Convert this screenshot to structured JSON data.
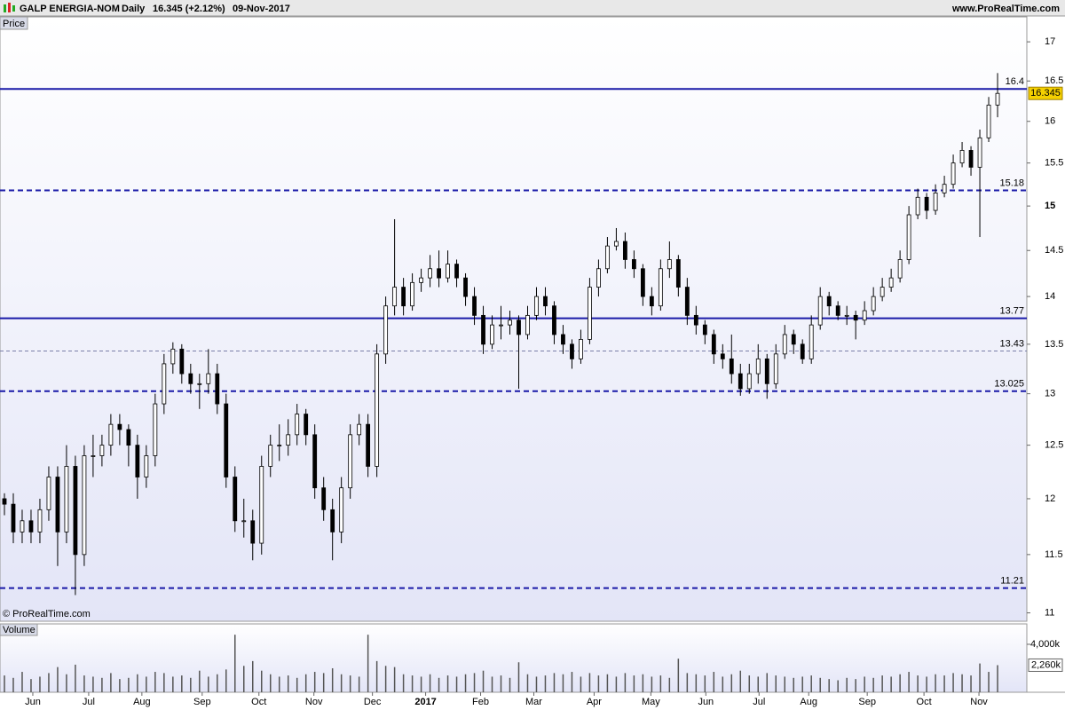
{
  "chart_data": {
    "type": "candlestick",
    "symbol": "GALP ENERGIA-NOM",
    "period": "Daily",
    "quote": "16.345 (+2.12%)",
    "date": "09-Nov-2017",
    "site": "www.ProRealTime.com",
    "copyright": "© ProRealTime.com",
    "price_label": "Price",
    "volume_label": "Volume",
    "log_scale": true,
    "ylim": [
      10.93,
      17.14
    ],
    "yticks": [
      11,
      11.5,
      12,
      12.5,
      13,
      13.5,
      14,
      14.5,
      15,
      15.5,
      16,
      16.5,
      17
    ],
    "bold_ytick": 15,
    "xlim": [
      -0.5,
      115.3
    ],
    "xticks": [
      {
        "value": 3.2,
        "label": "Jun"
      },
      {
        "value": 9.5,
        "label": "Jul"
      },
      {
        "value": 15.5,
        "label": "Aug"
      },
      {
        "value": 22.3,
        "label": "Sep"
      },
      {
        "value": 28.7,
        "label": "Oct"
      },
      {
        "value": 34.9,
        "label": "Nov"
      },
      {
        "value": 41.5,
        "label": "Dec"
      },
      {
        "value": 47.5,
        "label": "2017"
      },
      {
        "value": 53.7,
        "label": "Feb"
      },
      {
        "value": 59.7,
        "label": "Mar"
      },
      {
        "value": 66.5,
        "label": "Apr"
      },
      {
        "value": 72.9,
        "label": "May"
      },
      {
        "value": 79.1,
        "label": "Jun"
      },
      {
        "value": 85.1,
        "label": "Jul"
      },
      {
        "value": 90.7,
        "label": "Aug"
      },
      {
        "value": 97.3,
        "label": "Sep"
      },
      {
        "value": 103.7,
        "label": "Oct"
      },
      {
        "value": 109.9,
        "label": "Nov"
      }
    ],
    "bold_xtick": "2017",
    "levels": [
      {
        "value": 16.4,
        "style": "solid"
      },
      {
        "value": 15.18,
        "style": "dashed"
      },
      {
        "value": 13.77,
        "style": "solid"
      },
      {
        "value": 13.43,
        "style": "thin"
      },
      {
        "value": 13.025,
        "style": "dashed"
      },
      {
        "value": 11.21,
        "style": "dashed"
      }
    ],
    "level_color": "#1a1aa8",
    "last_price": 16.345,
    "ohlc": [
      [
        12.0,
        12.05,
        11.85,
        11.95
      ],
      [
        11.95,
        12.05,
        11.6,
        11.7
      ],
      [
        11.7,
        11.9,
        11.6,
        11.8
      ],
      [
        11.8,
        11.9,
        11.6,
        11.7
      ],
      [
        11.7,
        12.0,
        11.6,
        11.9
      ],
      [
        11.9,
        12.3,
        11.8,
        12.2
      ],
      [
        12.2,
        12.3,
        11.4,
        11.7
      ],
      [
        11.7,
        12.5,
        11.6,
        12.3
      ],
      [
        12.3,
        12.4,
        11.15,
        11.5
      ],
      [
        11.5,
        12.5,
        11.4,
        12.4
      ],
      [
        12.4,
        12.6,
        12.2,
        12.4
      ],
      [
        12.4,
        12.6,
        12.3,
        12.5
      ],
      [
        12.5,
        12.8,
        12.4,
        12.7
      ],
      [
        12.7,
        12.8,
        12.5,
        12.65
      ],
      [
        12.65,
        12.7,
        12.3,
        12.5
      ],
      [
        12.5,
        12.6,
        12.0,
        12.2
      ],
      [
        12.2,
        12.5,
        12.1,
        12.4
      ],
      [
        12.4,
        13.0,
        12.3,
        12.9
      ],
      [
        12.9,
        13.4,
        12.8,
        13.3
      ],
      [
        13.3,
        13.52,
        13.2,
        13.45
      ],
      [
        13.45,
        13.5,
        13.1,
        13.2
      ],
      [
        13.2,
        13.3,
        13.0,
        13.1
      ],
      [
        13.1,
        13.2,
        12.85,
        13.1
      ],
      [
        13.1,
        13.45,
        13.0,
        13.2
      ],
      [
        13.2,
        13.3,
        12.8,
        12.9
      ],
      [
        12.9,
        13.0,
        12.1,
        12.2
      ],
      [
        12.2,
        12.3,
        11.7,
        11.8
      ],
      [
        11.8,
        12.0,
        11.65,
        11.8
      ],
      [
        11.8,
        11.9,
        11.45,
        11.6
      ],
      [
        11.6,
        12.4,
        11.5,
        12.3
      ],
      [
        12.3,
        12.6,
        12.2,
        12.5
      ],
      [
        12.5,
        12.7,
        12.35,
        12.5
      ],
      [
        12.5,
        12.75,
        12.4,
        12.6
      ],
      [
        12.6,
        12.9,
        12.5,
        12.8
      ],
      [
        12.8,
        12.85,
        12.5,
        12.6
      ],
      [
        12.6,
        12.7,
        12.0,
        12.1
      ],
      [
        12.1,
        12.2,
        11.8,
        11.9
      ],
      [
        11.9,
        12.0,
        11.45,
        11.7
      ],
      [
        11.7,
        12.2,
        11.6,
        12.1
      ],
      [
        12.1,
        12.7,
        12.0,
        12.6
      ],
      [
        12.6,
        12.8,
        12.5,
        12.7
      ],
      [
        12.7,
        12.8,
        12.2,
        12.3
      ],
      [
        12.3,
        13.5,
        12.2,
        13.4
      ],
      [
        13.4,
        14.0,
        13.3,
        13.9
      ],
      [
        13.9,
        14.85,
        13.8,
        14.1
      ],
      [
        14.1,
        14.2,
        13.8,
        13.9
      ],
      [
        13.9,
        14.25,
        13.85,
        14.15
      ],
      [
        14.15,
        14.3,
        14.05,
        14.2
      ],
      [
        14.2,
        14.45,
        14.1,
        14.3
      ],
      [
        14.3,
        14.5,
        14.1,
        14.2
      ],
      [
        14.2,
        14.5,
        14.15,
        14.35
      ],
      [
        14.35,
        14.4,
        14.1,
        14.2
      ],
      [
        14.2,
        14.25,
        13.9,
        14.0
      ],
      [
        14.0,
        14.1,
        13.7,
        13.8
      ],
      [
        13.8,
        13.9,
        13.4,
        13.5
      ],
      [
        13.5,
        13.8,
        13.45,
        13.7
      ],
      [
        13.7,
        13.9,
        13.55,
        13.7
      ],
      [
        13.7,
        13.85,
        13.6,
        13.75
      ],
      [
        13.75,
        13.8,
        13.05,
        13.6
      ],
      [
        13.6,
        13.9,
        13.55,
        13.8
      ],
      [
        13.8,
        14.1,
        13.75,
        14.0
      ],
      [
        14.0,
        14.1,
        13.8,
        13.9
      ],
      [
        13.9,
        13.95,
        13.5,
        13.6
      ],
      [
        13.6,
        13.7,
        13.4,
        13.5
      ],
      [
        13.5,
        13.55,
        13.25,
        13.35
      ],
      [
        13.35,
        13.65,
        13.3,
        13.55
      ],
      [
        13.55,
        14.2,
        13.5,
        14.1
      ],
      [
        14.1,
        14.4,
        14.0,
        14.3
      ],
      [
        14.3,
        14.65,
        14.25,
        14.55
      ],
      [
        14.55,
        14.75,
        14.5,
        14.6
      ],
      [
        14.6,
        14.7,
        14.3,
        14.4
      ],
      [
        14.4,
        14.5,
        14.2,
        14.3
      ],
      [
        14.3,
        14.35,
        13.9,
        14.0
      ],
      [
        14.0,
        14.1,
        13.8,
        13.9
      ],
      [
        13.9,
        14.4,
        13.85,
        14.3
      ],
      [
        14.3,
        14.6,
        14.2,
        14.4
      ],
      [
        14.4,
        14.45,
        14.0,
        14.1
      ],
      [
        14.1,
        14.2,
        13.7,
        13.8
      ],
      [
        13.8,
        13.9,
        13.6,
        13.7
      ],
      [
        13.7,
        13.75,
        13.5,
        13.6
      ],
      [
        13.6,
        13.65,
        13.3,
        13.4
      ],
      [
        13.4,
        13.5,
        13.25,
        13.35
      ],
      [
        13.35,
        13.6,
        13.1,
        13.2
      ],
      [
        13.2,
        13.3,
        12.98,
        13.05
      ],
      [
        13.05,
        13.3,
        13.0,
        13.2
      ],
      [
        13.2,
        13.5,
        13.1,
        13.35
      ],
      [
        13.35,
        13.4,
        12.95,
        13.1
      ],
      [
        13.1,
        13.5,
        13.05,
        13.4
      ],
      [
        13.4,
        13.7,
        13.35,
        13.6
      ],
      [
        13.6,
        13.65,
        13.4,
        13.5
      ],
      [
        13.5,
        13.55,
        13.3,
        13.35
      ],
      [
        13.35,
        13.8,
        13.3,
        13.7
      ],
      [
        13.7,
        14.1,
        13.65,
        14.0
      ],
      [
        14.0,
        14.05,
        13.8,
        13.9
      ],
      [
        13.9,
        13.95,
        13.75,
        13.8
      ],
      [
        13.8,
        13.9,
        13.7,
        13.8
      ],
      [
        13.8,
        13.85,
        13.55,
        13.75
      ],
      [
        13.75,
        13.95,
        13.7,
        13.85
      ],
      [
        13.85,
        14.1,
        13.8,
        14.0
      ],
      [
        14.0,
        14.2,
        13.95,
        14.1
      ],
      [
        14.1,
        14.3,
        14.05,
        14.2
      ],
      [
        14.2,
        14.5,
        14.15,
        14.4
      ],
      [
        14.4,
        15.0,
        14.35,
        14.9
      ],
      [
        14.9,
        15.2,
        14.85,
        15.1
      ],
      [
        15.1,
        15.15,
        14.85,
        14.95
      ],
      [
        14.95,
        15.25,
        14.9,
        15.15
      ],
      [
        15.15,
        15.35,
        15.1,
        15.25
      ],
      [
        15.25,
        15.6,
        15.2,
        15.5
      ],
      [
        15.5,
        15.75,
        15.45,
        15.65
      ],
      [
        15.65,
        15.7,
        15.35,
        15.45
      ],
      [
        15.45,
        15.9,
        14.65,
        15.8
      ],
      [
        15.8,
        16.3,
        15.75,
        16.2
      ],
      [
        16.2,
        16.6,
        16.05,
        16.345
      ]
    ],
    "volume_ylim": [
      0,
      5700
    ],
    "volume_yticks": [
      {
        "value": 4000,
        "label": "4,000k"
      }
    ],
    "last_volume": {
      "value": 2260,
      "label": "2,260k"
    },
    "volume_color": "#555555",
    "volumes": [
      1400,
      1200,
      1700,
      1100,
      1300,
      1600,
      2100,
      1500,
      2300,
      1400,
      1300,
      1200,
      1600,
      1100,
      1200,
      1500,
      1300,
      1700,
      1600,
      1300,
      1400,
      1200,
      1800,
      1300,
      1500,
      1900,
      4800,
      2200,
      2600,
      1800,
      1500,
      1300,
      1400,
      1200,
      1500,
      1700,
      1600,
      2000,
      1500,
      1400,
      1300,
      4800,
      2600,
      2200,
      2100,
      1500,
      1400,
      1300,
      1500,
      1200,
      1400,
      1300,
      1500,
      1600,
      1800,
      1300,
      1400,
      1200,
      2500,
      1500,
      1300,
      1400,
      1600,
      1500,
      1700,
      1300,
      1600,
      1400,
      1500,
      1300,
      1600,
      1400,
      1500,
      1300,
      1400,
      1200,
      2800,
      1600,
      1500,
      1400,
      1700,
      1300,
      1500,
      1800,
      1400,
      1300,
      1600,
      1400,
      1300,
      1200,
      1300,
      1400,
      1200,
      1100,
      1000,
      1200,
      1100,
      1300,
      1200,
      1400,
      1300,
      1500,
      1700,
      1400,
      1300,
      1500,
      1400,
      1600,
      1500,
      1400,
      2400,
      1700,
      2260
    ]
  }
}
